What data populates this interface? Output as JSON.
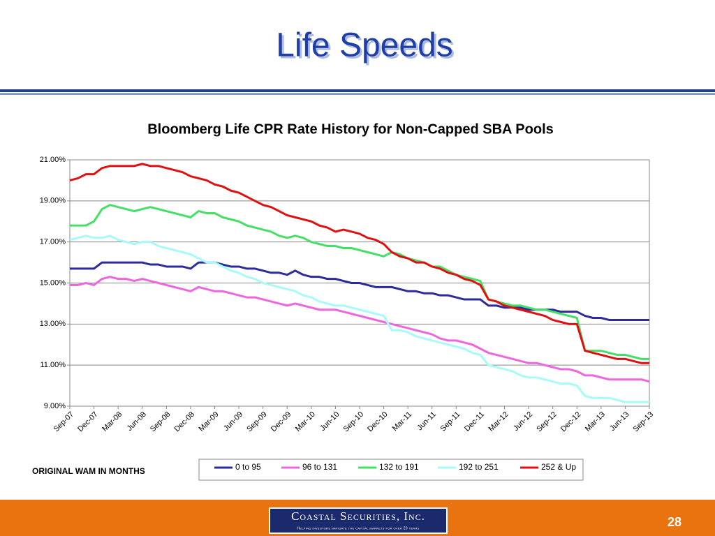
{
  "slide": {
    "title": "Life Speeds",
    "note": "ORIGINAL WAM IN MONTHS",
    "logo": "Coastal Securities, Inc.",
    "tagline": "Helping investors navigate the capital markets for over 20 years",
    "page": "28"
  },
  "chart_data": {
    "type": "line",
    "title": "Bloomberg Life CPR Rate History for Non-Capped SBA Pools",
    "categories": [
      "Sep-07",
      null,
      null,
      "Dec-07",
      null,
      null,
      "Mar-08",
      null,
      null,
      "Jun-08",
      null,
      null,
      "Sep-08",
      null,
      null,
      "Dec-08",
      null,
      null,
      "Mar-09",
      null,
      null,
      "Jun-09",
      null,
      null,
      "Sep-09",
      null,
      null,
      "Dec-09",
      null,
      null,
      "Mar-10",
      null,
      null,
      "Jun-10",
      null,
      null,
      "Sep-10",
      null,
      null,
      "Dec-10",
      null,
      null,
      "Mar-11",
      null,
      null,
      "Jun-11",
      null,
      null,
      "Sep-11",
      null,
      null,
      "Dec-11",
      null,
      null,
      "Mar-12",
      null,
      null,
      "Jun-12",
      null,
      null,
      "Sep-12",
      null,
      null,
      "Dec-12",
      null,
      null,
      "Mar-13",
      null,
      null,
      "Jun-13",
      null,
      null,
      "Sep-13"
    ],
    "series": [
      {
        "name": "0 to 95",
        "color": "#2b2b9c",
        "values": [
          15.7,
          15.7,
          15.7,
          15.7,
          16.0,
          16.0,
          16.0,
          16.0,
          16.0,
          16.0,
          15.9,
          15.9,
          15.8,
          15.8,
          15.8,
          15.7,
          16.0,
          16.0,
          16.0,
          15.9,
          15.8,
          15.8,
          15.7,
          15.7,
          15.6,
          15.5,
          15.5,
          15.4,
          15.6,
          15.4,
          15.3,
          15.3,
          15.2,
          15.2,
          15.1,
          15.0,
          15.0,
          14.9,
          14.8,
          14.8,
          14.8,
          14.7,
          14.6,
          14.6,
          14.5,
          14.5,
          14.4,
          14.4,
          14.3,
          14.2,
          14.2,
          14.2,
          13.9,
          13.9,
          13.8,
          13.8,
          13.8,
          13.7,
          13.7,
          13.7,
          13.7,
          13.6,
          13.6,
          13.6,
          13.4,
          13.3,
          13.3,
          13.2,
          13.2,
          13.2,
          13.2,
          13.2,
          13.2
        ]
      },
      {
        "name": "96 to 131",
        "color": "#ee66dd",
        "values": [
          14.9,
          14.9,
          15.0,
          14.9,
          15.2,
          15.3,
          15.2,
          15.2,
          15.1,
          15.2,
          15.1,
          15.0,
          14.9,
          14.8,
          14.7,
          14.6,
          14.8,
          14.7,
          14.6,
          14.6,
          14.5,
          14.4,
          14.3,
          14.3,
          14.2,
          14.1,
          14.0,
          13.9,
          14.0,
          13.9,
          13.8,
          13.7,
          13.7,
          13.7,
          13.6,
          13.5,
          13.4,
          13.3,
          13.2,
          13.1,
          13.0,
          12.9,
          12.8,
          12.7,
          12.6,
          12.5,
          12.3,
          12.2,
          12.2,
          12.1,
          12.0,
          11.8,
          11.6,
          11.5,
          11.4,
          11.3,
          11.2,
          11.1,
          11.1,
          11.0,
          10.9,
          10.8,
          10.8,
          10.7,
          10.5,
          10.5,
          10.4,
          10.3,
          10.3,
          10.3,
          10.3,
          10.3,
          10.2
        ]
      },
      {
        "name": "132 to 191",
        "color": "#44e066",
        "values": [
          17.8,
          17.8,
          17.8,
          18.0,
          18.6,
          18.8,
          18.7,
          18.6,
          18.5,
          18.6,
          18.7,
          18.6,
          18.5,
          18.4,
          18.3,
          18.2,
          18.5,
          18.4,
          18.4,
          18.2,
          18.1,
          18.0,
          17.8,
          17.7,
          17.6,
          17.5,
          17.3,
          17.2,
          17.3,
          17.2,
          17.0,
          16.9,
          16.8,
          16.8,
          16.7,
          16.7,
          16.6,
          16.5,
          16.4,
          16.3,
          16.5,
          16.4,
          16.2,
          16.1,
          16.0,
          15.8,
          15.8,
          15.6,
          15.4,
          15.3,
          15.2,
          15.1,
          14.2,
          14.1,
          14.0,
          13.9,
          13.9,
          13.8,
          13.7,
          13.7,
          13.6,
          13.5,
          13.4,
          13.3,
          11.7,
          11.7,
          11.7,
          11.6,
          11.5,
          11.5,
          11.4,
          11.3,
          11.3
        ]
      },
      {
        "name": "192 to 251",
        "color": "#a8fafa",
        "values": [
          17.1,
          17.2,
          17.3,
          17.2,
          17.2,
          17.3,
          17.1,
          17.0,
          16.9,
          17.0,
          17.0,
          16.8,
          16.7,
          16.6,
          16.5,
          16.4,
          16.2,
          16.0,
          16.0,
          15.8,
          15.6,
          15.5,
          15.3,
          15.2,
          15.0,
          14.9,
          14.8,
          14.7,
          14.6,
          14.4,
          14.3,
          14.1,
          14.0,
          13.9,
          13.9,
          13.8,
          13.7,
          13.6,
          13.5,
          13.4,
          12.7,
          12.7,
          12.6,
          12.4,
          12.3,
          12.2,
          12.1,
          12.0,
          11.9,
          11.8,
          11.6,
          11.5,
          11.0,
          10.9,
          10.8,
          10.7,
          10.5,
          10.4,
          10.4,
          10.3,
          10.2,
          10.1,
          10.1,
          10.0,
          9.5,
          9.4,
          9.4,
          9.4,
          9.3,
          9.2,
          9.2,
          9.2,
          9.2
        ]
      },
      {
        "name": "252 & Up",
        "color": "#e01010",
        "values": [
          20.0,
          20.1,
          20.3,
          20.3,
          20.6,
          20.7,
          20.7,
          20.7,
          20.7,
          20.8,
          20.7,
          20.7,
          20.6,
          20.5,
          20.4,
          20.2,
          20.1,
          20.0,
          19.8,
          19.7,
          19.5,
          19.4,
          19.2,
          19.0,
          18.8,
          18.7,
          18.5,
          18.3,
          18.2,
          18.1,
          18.0,
          17.8,
          17.7,
          17.5,
          17.6,
          17.5,
          17.4,
          17.2,
          17.1,
          16.9,
          16.5,
          16.3,
          16.2,
          16.0,
          16.0,
          15.8,
          15.7,
          15.5,
          15.4,
          15.2,
          15.1,
          14.9,
          14.2,
          14.1,
          13.9,
          13.8,
          13.7,
          13.6,
          13.5,
          13.4,
          13.2,
          13.1,
          13.0,
          13.0,
          11.7,
          11.6,
          11.5,
          11.4,
          11.3,
          11.3,
          11.2,
          11.1,
          11.1
        ]
      }
    ],
    "ylim": [
      9,
      21
    ],
    "yticks": [
      {
        "value": 9,
        "label": "9.00%"
      },
      {
        "value": 11,
        "label": "11.00%"
      },
      {
        "value": 13,
        "label": "13.00%"
      },
      {
        "value": 15,
        "label": "15.00%"
      },
      {
        "value": 17,
        "label": "17.00%"
      },
      {
        "value": 19,
        "label": "19.00%"
      },
      {
        "value": 21,
        "label": "21.00%"
      }
    ],
    "grid": true,
    "legend": "bottom"
  }
}
